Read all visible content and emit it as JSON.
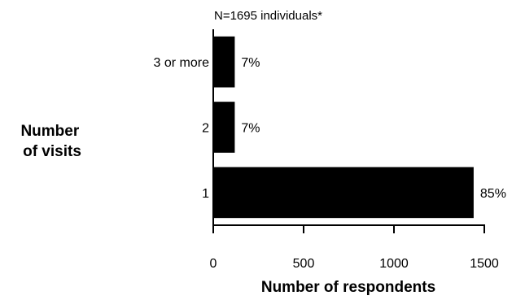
{
  "chart_data": {
    "type": "bar",
    "orientation": "horizontal",
    "note": "N=1695 individuals*",
    "ylabel": [
      "Number",
      "of visits"
    ],
    "xlabel": "Number of respondents",
    "categories": [
      "3 or more",
      "2",
      "1"
    ],
    "values": [
      119,
      119,
      1441
    ],
    "data_labels": [
      "7%",
      "7%",
      "85%"
    ],
    "xlim": [
      0,
      1500
    ],
    "xticks": [
      0,
      500,
      1000,
      1500
    ],
    "grid": false,
    "bar_color": "#000000"
  }
}
